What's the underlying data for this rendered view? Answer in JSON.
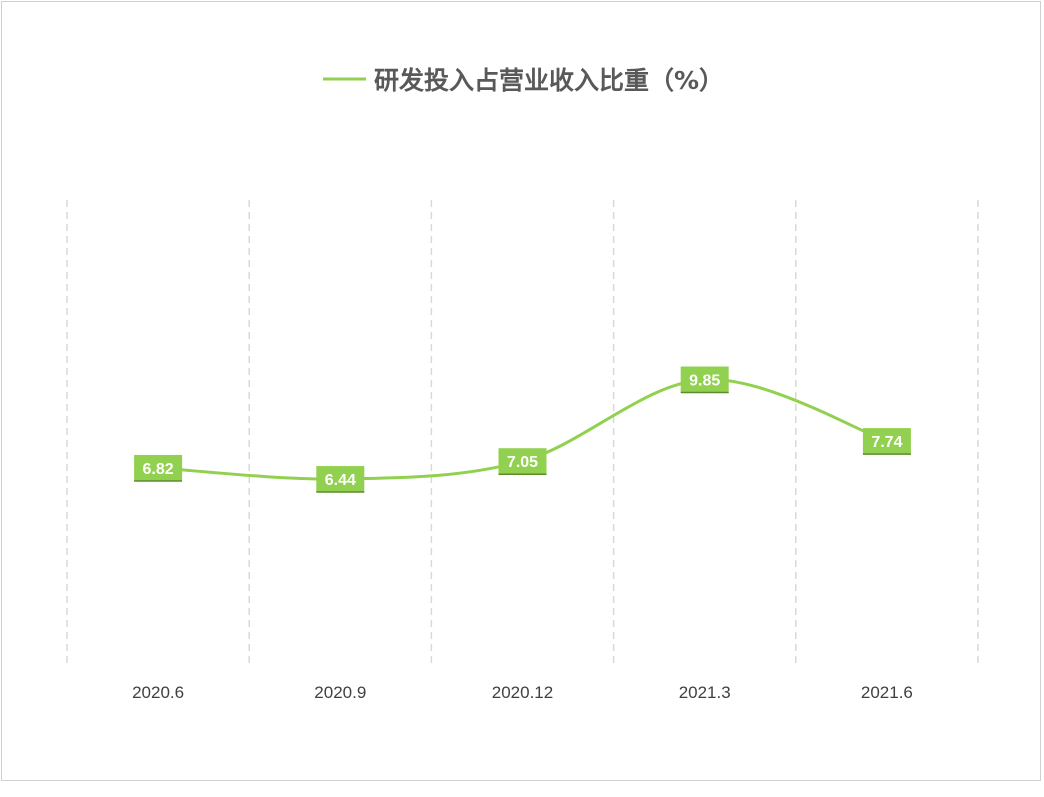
{
  "chart_data": {
    "type": "line",
    "categories": [
      "2020.6",
      "2020.9",
      "2020.12",
      "2021.3",
      "2021.6"
    ],
    "series": [
      {
        "name": "研发投入占营业收入比重（%）",
        "values": [
          6.82,
          6.44,
          7.05,
          9.85,
          7.74
        ],
        "color": "#92d050"
      }
    ],
    "value_labels": [
      "6.82",
      "6.44",
      "7.05",
      "9.85",
      "7.74"
    ],
    "ylim": [
      0,
      16
    ],
    "grid": "vertical-dashed",
    "legend_position": "top",
    "label_box_color": "#92d050",
    "label_text_color": "#ffffff",
    "gridline_color": "#d9d9d9",
    "axis_text_color": "#404040"
  }
}
